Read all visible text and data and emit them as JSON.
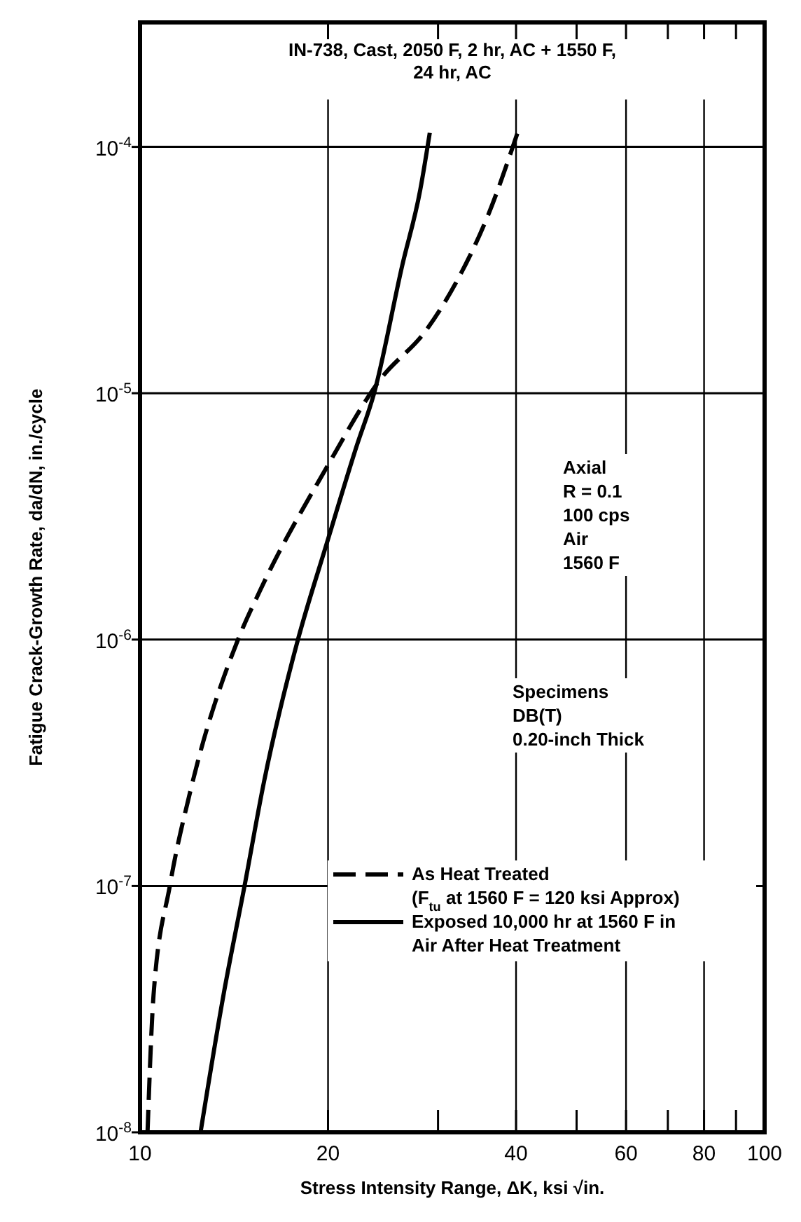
{
  "chart_data": {
    "type": "line",
    "title": "IN-738, Cast, 2050 F, 2 hr, AC + 1550 F, 24 hr, AC",
    "xlabel": "Stress Intensity Range, ΔK, ksi √in.",
    "ylabel": "Fatigue Crack-Growth Rate, da/dN, in./cycle",
    "log": "xy",
    "xlim": [
      10,
      100
    ],
    "ylim": [
      1e-08,
      0.00032
    ],
    "xticks": [
      10,
      20,
      {
        "value": 30,
        "label": null
      },
      40,
      {
        "value": 50,
        "label": null
      },
      60,
      {
        "value": 70,
        "label": null
      },
      80,
      {
        "value": 90,
        "label": null
      },
      100
    ],
    "yticks": [
      {
        "value": 1e-08,
        "label": "10$^{-8}$"
      },
      {
        "value": 1e-07,
        "label": "10$^{-7}$"
      },
      {
        "value": 1e-06,
        "label": "10$^{-6}$"
      },
      {
        "value": 1e-05,
        "label": "10$^{-5}$"
      },
      {
        "value": 0.0001,
        "label": "10$^{-4}$"
      }
    ],
    "grid": true,
    "legend": "bottom right",
    "annotations": [
      "Axial\nR = 0.1\n100 cps\nAir\n1560 F",
      "Specimens\nDB(T)\n0.20-inch Thick"
    ],
    "series": [
      {
        "name": "As Heat Treated\n(F$_{tu}$ at 1560 F = 120 ksi Approx)",
        "color": "#000000",
        "line_style": "dashed",
        "x": [
          10.28,
          10.51,
          11.16,
          12.04,
          14.35,
          15.6,
          19.9,
          24.2,
          28.8,
          32.2,
          36.1,
          40.4
        ],
        "values": [
          1e-08,
          3.6e-08,
          1e-07,
          2.43e-07,
          1e-06,
          1.6e-06,
          5e-06,
          1.13e-05,
          1.82e-05,
          2.87e-05,
          5.3e-05,
          0.000118
        ]
      },
      {
        "name": "Exposed 10,000 hr at 1560 F in\nAir After Heat Treatment",
        "color": "#000000",
        "line_style": "solid",
        "x": [
          12.5,
          13.6,
          14.7,
          15.8,
          17.9,
          19.9,
          22.2,
          23.7,
          26.3,
          28.1,
          29.1
        ],
        "values": [
          1e-08,
          3.6e-08,
          1e-07,
          2.66e-07,
          1e-06,
          2.45e-06,
          6.05e-06,
          1e-05,
          3.31e-05,
          6.7e-05,
          0.000114
        ]
      }
    ]
  }
}
